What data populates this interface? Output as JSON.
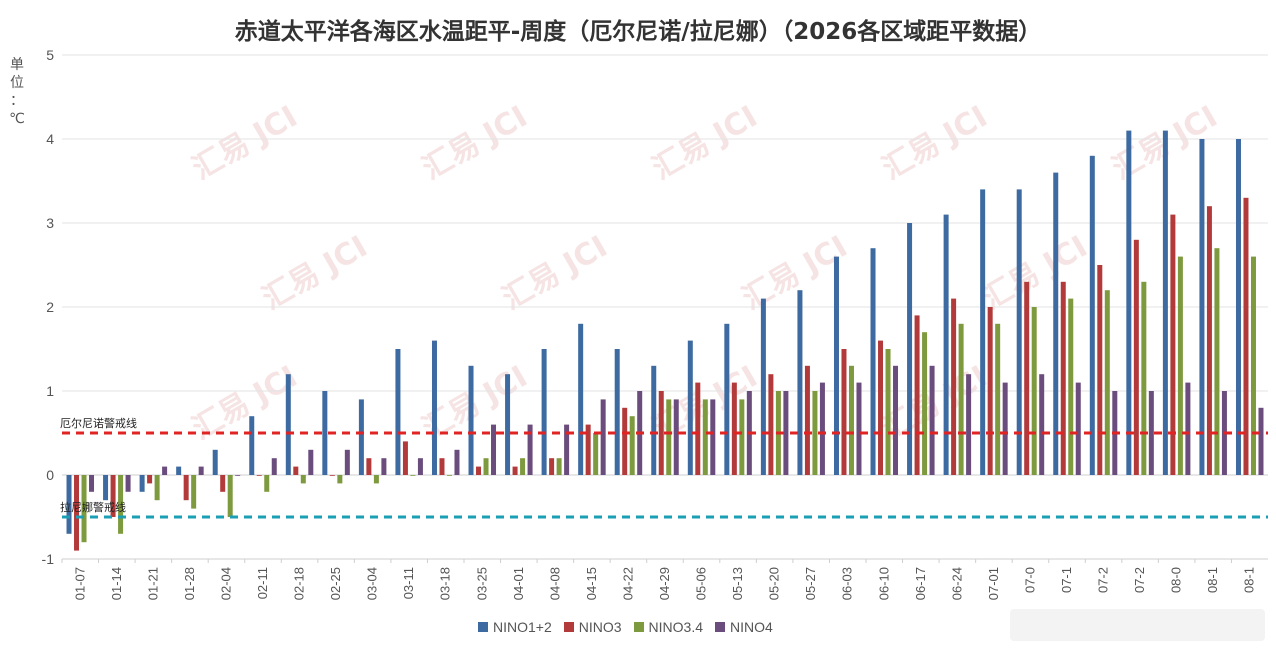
{
  "chart_data": {
    "type": "bar",
    "title": "赤道太平洋各海区水温距平-周度（厄尔尼诺/拉尼娜）（2026各区域距平数据）",
    "ylabel": "单位：℃",
    "ylim": [
      -1,
      5
    ],
    "yticks": [
      -1,
      0,
      1,
      2,
      3,
      4,
      5
    ],
    "grid": true,
    "legend_position": "bottom",
    "categories": [
      "01-07",
      "01-14",
      "01-21",
      "01-28",
      "02-04",
      "02-11",
      "02-18",
      "02-25",
      "03-04",
      "03-11",
      "03-18",
      "03-25",
      "04-01",
      "04-08",
      "04-15",
      "04-22",
      "04-29",
      "05-06",
      "05-13",
      "05-20",
      "05-27",
      "06-03",
      "06-10",
      "06-17",
      "06-24",
      "07-01",
      "07-0",
      "07-1",
      "07-2",
      "07-2",
      "08-0",
      "08-1",
      "08-1"
    ],
    "series": [
      {
        "name": "NINO1+2",
        "color": "#3d6aa0",
        "values": [
          -0.7,
          -0.3,
          -0.2,
          0.1,
          0.3,
          0.7,
          1.2,
          1.0,
          0.9,
          1.5,
          1.6,
          1.3,
          1.2,
          1.5,
          1.8,
          1.5,
          1.3,
          1.6,
          1.8,
          2.1,
          2.2,
          2.6,
          2.7,
          3.0,
          3.1,
          3.4,
          3.4,
          3.6,
          3.8,
          4.1,
          4.1,
          4.0,
          4.0
        ]
      },
      {
        "name": "NINO3",
        "color": "#b33a3a",
        "values": [
          -0.9,
          -0.5,
          -0.1,
          -0.3,
          -0.2,
          0.0,
          0.1,
          0.0,
          0.2,
          0.4,
          0.2,
          0.1,
          0.1,
          0.2,
          0.6,
          0.8,
          1.0,
          1.1,
          1.1,
          1.2,
          1.3,
          1.5,
          1.6,
          1.9,
          2.1,
          2.0,
          2.3,
          2.3,
          2.5,
          2.8,
          3.1,
          3.2,
          3.3
        ]
      },
      {
        "name": "NINO3.4",
        "color": "#7e9a3e",
        "values": [
          -0.8,
          -0.7,
          -0.3,
          -0.4,
          -0.5,
          -0.2,
          -0.1,
          -0.1,
          -0.1,
          0.0,
          0.0,
          0.2,
          0.2,
          0.2,
          0.5,
          0.7,
          0.9,
          0.9,
          0.9,
          1.0,
          1.0,
          1.3,
          1.5,
          1.7,
          1.8,
          1.8,
          2.0,
          2.1,
          2.2,
          2.3,
          2.6,
          2.7,
          2.6
        ]
      },
      {
        "name": "NINO4",
        "color": "#6a4c7d",
        "values": [
          -0.2,
          -0.2,
          0.1,
          0.1,
          0.0,
          0.2,
          0.3,
          0.3,
          0.2,
          0.2,
          0.3,
          0.6,
          0.6,
          0.6,
          0.9,
          1.0,
          0.9,
          0.9,
          1.0,
          1.0,
          1.1,
          1.1,
          1.3,
          1.3,
          1.2,
          1.1,
          1.2,
          1.1,
          1.0,
          1.0,
          1.1,
          1.0,
          0.8
        ]
      }
    ],
    "thresholds": [
      {
        "label": "厄尔尼诺警戒线",
        "value": 0.5,
        "color": "#e02424"
      },
      {
        "label": "拉尼娜警戒线",
        "value": -0.5,
        "color": "#1a9fb5"
      }
    ]
  },
  "watermark": {
    "text": "汇易 JCI"
  }
}
